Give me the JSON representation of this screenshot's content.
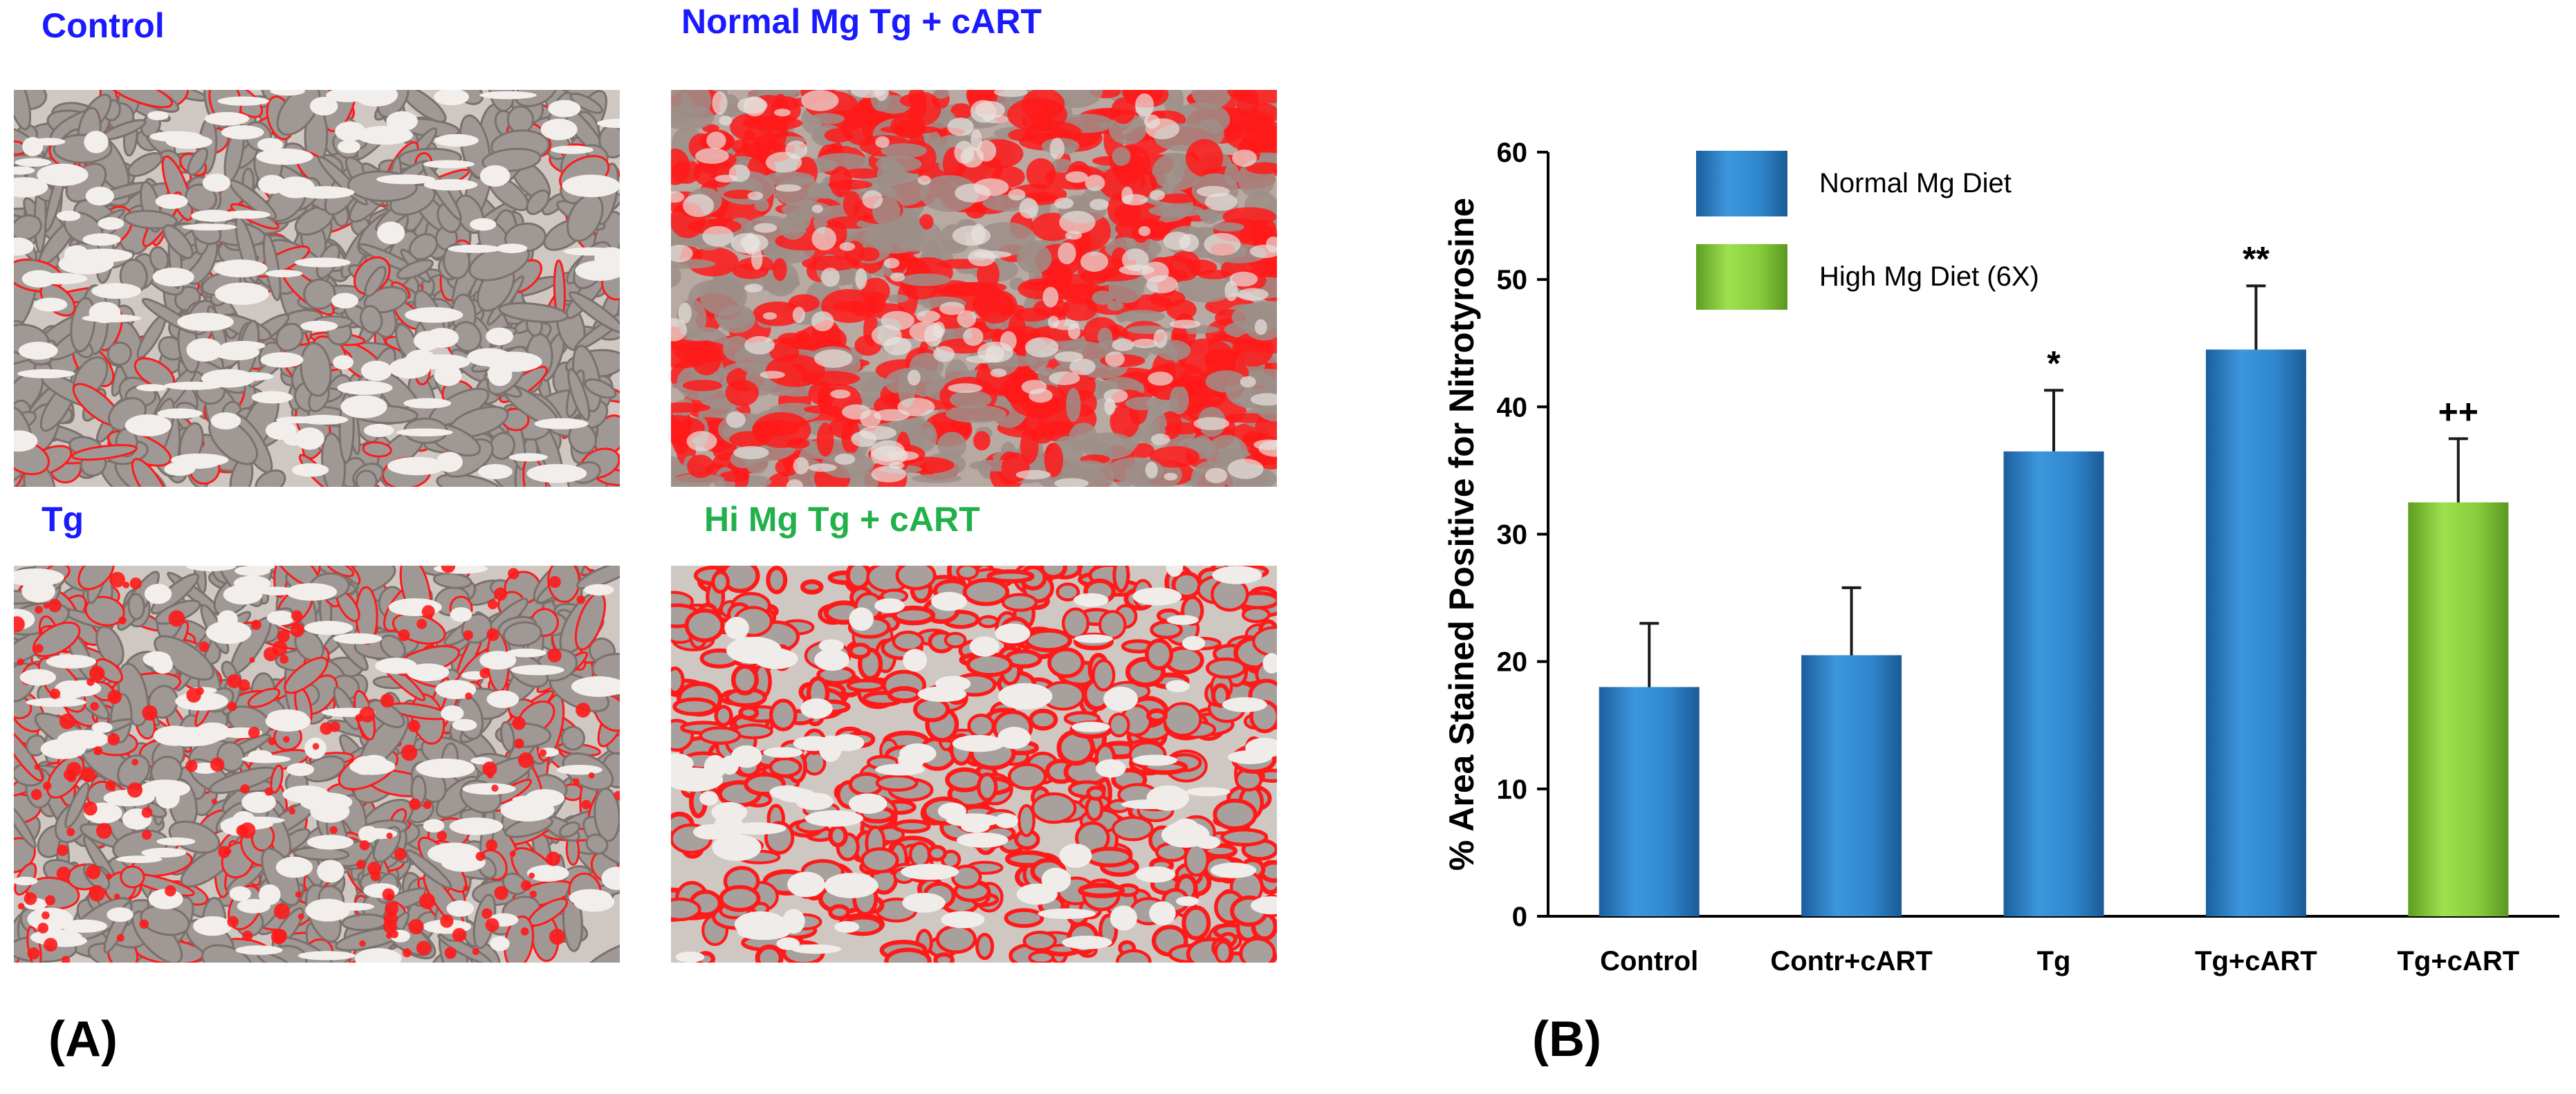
{
  "panel_a": {
    "letter": "(A)",
    "images": [
      {
        "label": "Control",
        "label_color": "#1a1aff",
        "texture": "control"
      },
      {
        "label": "Normal Mg Tg + cART",
        "label_color": "#1a1aff",
        "texture": "dense"
      },
      {
        "label": "Tg",
        "label_color": "#1a1aff",
        "texture": "tg"
      },
      {
        "label": "Hi Mg Tg + cART",
        "label_color": "#22b04b",
        "texture": "rings"
      }
    ]
  },
  "panel_b": {
    "letter": "(B)"
  },
  "chart_data": {
    "type": "bar",
    "title": "",
    "ylabel": "% Area Stained Positive for Nitrotyrosine",
    "xlabel": "",
    "ylim": [
      0,
      60
    ],
    "yticks": [
      0,
      10,
      20,
      30,
      40,
      50,
      60
    ],
    "categories": [
      "Control",
      "Contr+cART",
      "Tg",
      "Tg+cART",
      "Tg+cART"
    ],
    "values": [
      18,
      20.5,
      36.5,
      44.5,
      32.5
    ],
    "errors": [
      5,
      5.3,
      4.8,
      5,
      5
    ],
    "annotations": [
      "",
      "",
      "*",
      "**",
      "++"
    ],
    "bar_series": [
      "normal",
      "normal",
      "normal",
      "normal",
      "high"
    ],
    "legend": [
      {
        "key": "normal",
        "name": "Normal Mg Diet",
        "color": "#2f86cc"
      },
      {
        "key": "high",
        "name": "High Mg Diet (6X)",
        "color": "#86cc3c"
      }
    ],
    "legend_position": "top-left",
    "grid": false
  }
}
